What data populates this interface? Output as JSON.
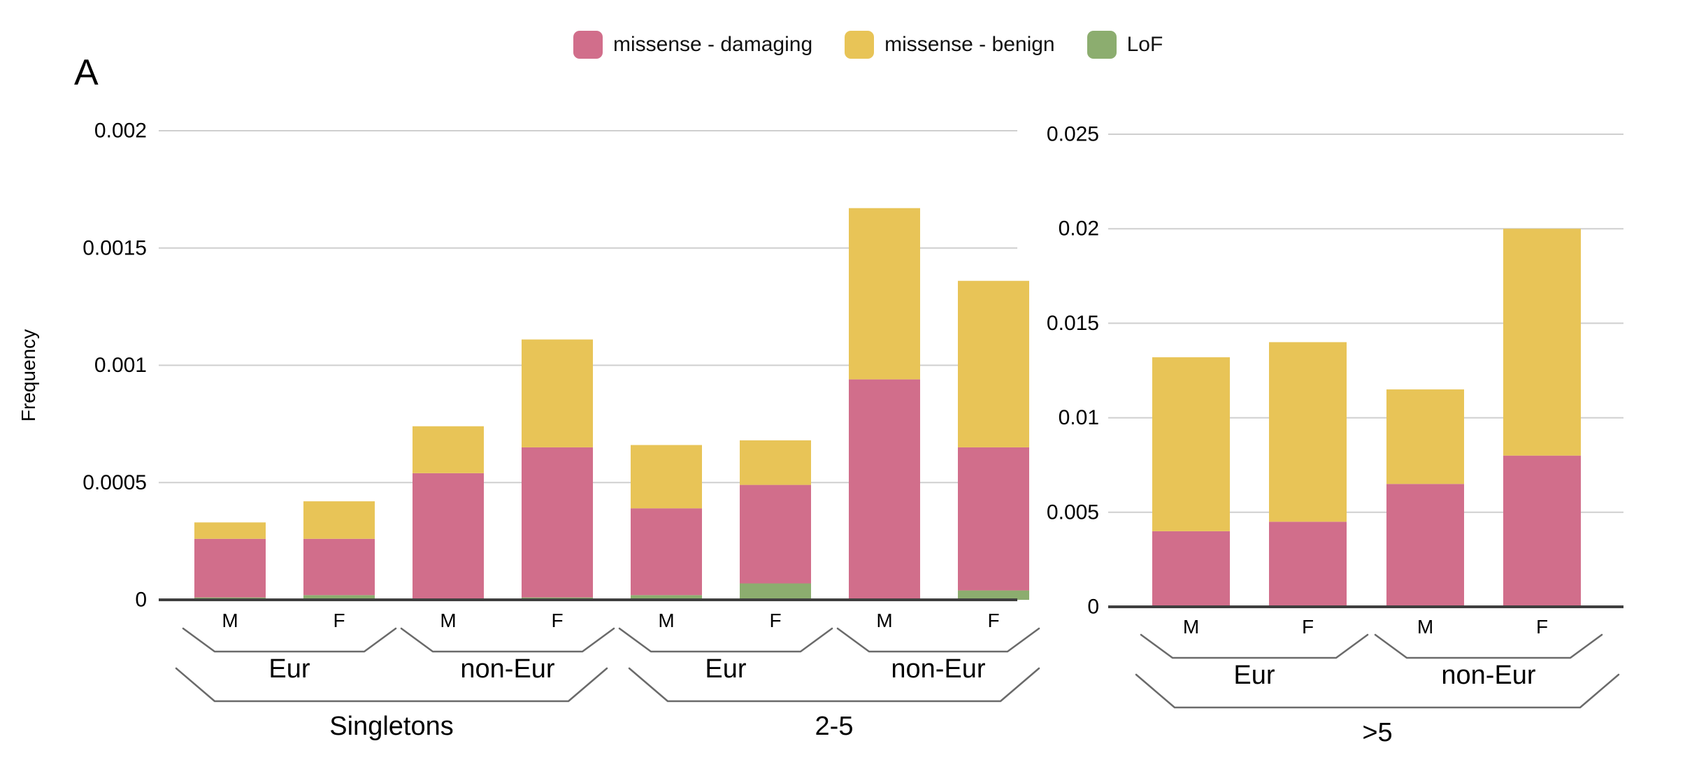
{
  "panel_label": "A",
  "legend": [
    {
      "label": "missense - damaging",
      "color": "#d16e8b"
    },
    {
      "label": "missense - benign",
      "color": "#e8c457"
    },
    {
      "label": "LoF",
      "color": "#8cad6f"
    }
  ],
  "colors": {
    "grid": "#cfcfcf",
    "axis": "#3f3f3f",
    "bracket": "#6a6a6a",
    "text": "#000000"
  },
  "chart_data": [
    {
      "type": "bar",
      "stacked": true,
      "name": "singletons-and-2-5",
      "ylabel": "Frequency",
      "ylim": [
        0,
        0.002
      ],
      "grid": true,
      "ytick_values": [
        0,
        0.0005,
        0.001,
        0.0015,
        0.002
      ],
      "ytick_labels": [
        "0",
        "0.0005",
        "0.001",
        "0.0015",
        "0.002"
      ],
      "bar_labels": [
        "M",
        "F",
        "M",
        "F",
        "M",
        "F",
        "M",
        "F"
      ],
      "pop_groups": [
        {
          "label": "Eur",
          "first": 0,
          "last": 1
        },
        {
          "label": "non-Eur",
          "first": 2,
          "last": 3
        },
        {
          "label": "Eur",
          "first": 4,
          "last": 5
        },
        {
          "label": "non-Eur",
          "first": 6,
          "last": 7
        }
      ],
      "class_groups": [
        {
          "label": "Singletons",
          "first": 0,
          "last": 3
        },
        {
          "label": "2-5",
          "first": 4,
          "last": 7
        }
      ],
      "series": [
        {
          "name": "LoF",
          "values": [
            1e-05,
            2e-05,
            0,
            1e-05,
            2e-05,
            7e-05,
            0,
            4e-05
          ]
        },
        {
          "name": "missense - damaging",
          "values": [
            0.00025,
            0.00024,
            0.00054,
            0.00064,
            0.00037,
            0.00042,
            0.00094,
            0.00061
          ]
        },
        {
          "name": "missense - benign",
          "values": [
            7e-05,
            0.00016,
            0.0002,
            0.00046,
            0.00027,
            0.00019,
            0.00073,
            0.00071
          ]
        }
      ]
    },
    {
      "type": "bar",
      "stacked": true,
      "name": "gt5",
      "ylabel": "",
      "ylim": [
        0,
        0.025
      ],
      "grid": true,
      "ytick_values": [
        0,
        0.005,
        0.01,
        0.015,
        0.02,
        0.025
      ],
      "ytick_labels": [
        "0",
        "0.005",
        "0.01",
        "0.015",
        "0.02",
        "0.025"
      ],
      "bar_labels": [
        "M",
        "F",
        "M",
        "F"
      ],
      "pop_groups": [
        {
          "label": "Eur",
          "first": 0,
          "last": 1
        },
        {
          "label": "non-Eur",
          "first": 2,
          "last": 3
        }
      ],
      "class_groups": [
        {
          "label": ">5",
          "first": 0,
          "last": 3
        }
      ],
      "series": [
        {
          "name": "LoF",
          "values": [
            0,
            0,
            0,
            0
          ]
        },
        {
          "name": "missense - damaging",
          "values": [
            0.004,
            0.0045,
            0.0065,
            0.008
          ]
        },
        {
          "name": "missense - benign",
          "values": [
            0.0092,
            0.0095,
            0.005,
            0.012
          ]
        }
      ]
    }
  ]
}
